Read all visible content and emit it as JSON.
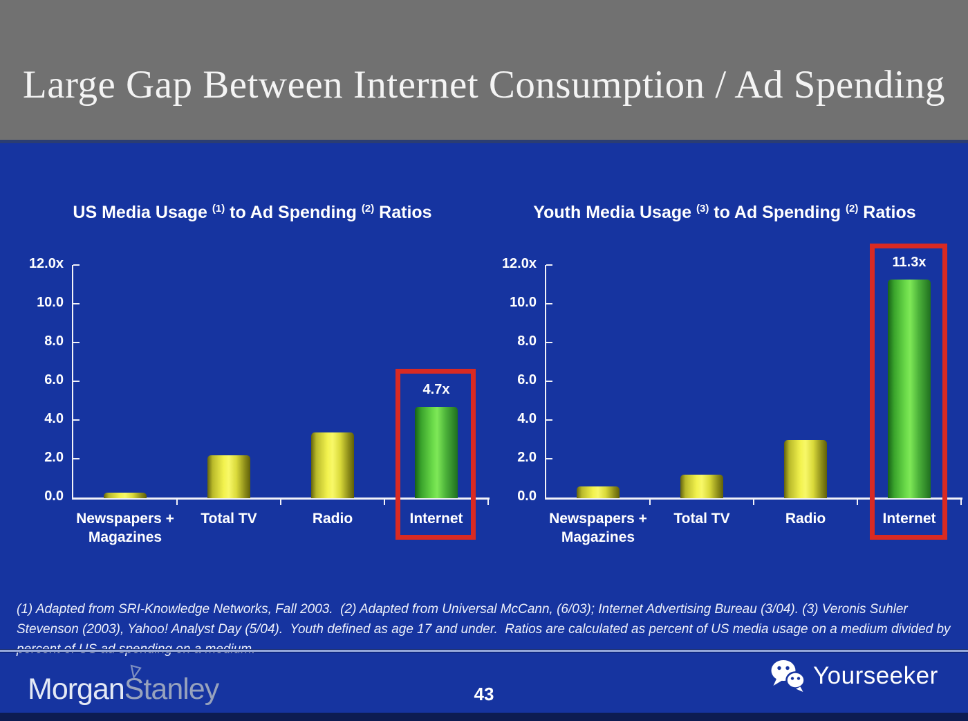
{
  "slide": {
    "title": "Large Gap Between Internet Consumption / Ad Spending",
    "page_number": "43",
    "footnote": "(1) Adapted from SRI-Knowledge Networks, Fall 2003.  (2) Adapted from Universal McCann, (6/03); Internet Advertising Bureau (3/04). (3) Veronis Suhler Stevenson (2003), Yahoo! Analyst Day (5/04).  Youth defined as age 17 and under.  Ratios are calculated as percent of US media usage on a medium divided by percent of US ad spending on a medium.",
    "brand": {
      "morgan": "Morgan",
      "stanley": "Stanley"
    },
    "watermark": {
      "label": "Yourseeker",
      "icon": "wechat-icon"
    }
  },
  "colors": {
    "background_blue": "#1634a0",
    "header_gray": "#717171",
    "bar_yellow": "#f2f24e",
    "bar_green": "#6cdb4a",
    "highlight_red": "#d92a22",
    "axis_white": "#f2f2f8",
    "bottom_strip_navy": "#0d1c52"
  },
  "chart_data": [
    {
      "type": "bar",
      "title_plain": "US Media Usage (1) to Ad Spending (2) Ratios",
      "title_parts": {
        "t1": "US Media Usage ",
        "sup1": "(1)",
        "t2": " to Ad Spending ",
        "sup2": "(2)",
        "t3": " Ratios"
      },
      "categories": [
        "Newspapers + Magazines",
        "Total TV",
        "Radio",
        "Internet"
      ],
      "values": [
        0.3,
        2.2,
        3.4,
        4.7
      ],
      "bar_labels": [
        "",
        "",
        "",
        "4.7x"
      ],
      "bar_colors": [
        "yellow",
        "yellow",
        "yellow",
        "green"
      ],
      "highlight_index": 3,
      "y_ticks": [
        "12.0x",
        "10.0",
        "8.0",
        "6.0",
        "4.0",
        "2.0",
        "0.0"
      ],
      "ylim": [
        0,
        12
      ],
      "grid": false,
      "legend": "none"
    },
    {
      "type": "bar",
      "title_plain": "Youth Media Usage (3) to Ad Spending (2) Ratios",
      "title_parts": {
        "t1": "Youth Media Usage ",
        "sup1": "(3)",
        "t2": " to Ad Spending ",
        "sup2": "(2)",
        "t3": " Ratios"
      },
      "categories": [
        "Newspapers + Magazines",
        "Total TV",
        "Radio",
        "Internet"
      ],
      "values": [
        0.6,
        1.2,
        3.0,
        11.3
      ],
      "bar_labels": [
        "",
        "",
        "",
        "11.3x"
      ],
      "bar_colors": [
        "yellow",
        "yellow",
        "yellow",
        "green"
      ],
      "highlight_index": 3,
      "y_ticks": [
        "12.0x",
        "10.0",
        "8.0",
        "6.0",
        "4.0",
        "2.0",
        "0.0"
      ],
      "ylim": [
        0,
        12
      ],
      "grid": false,
      "legend": "none"
    }
  ]
}
